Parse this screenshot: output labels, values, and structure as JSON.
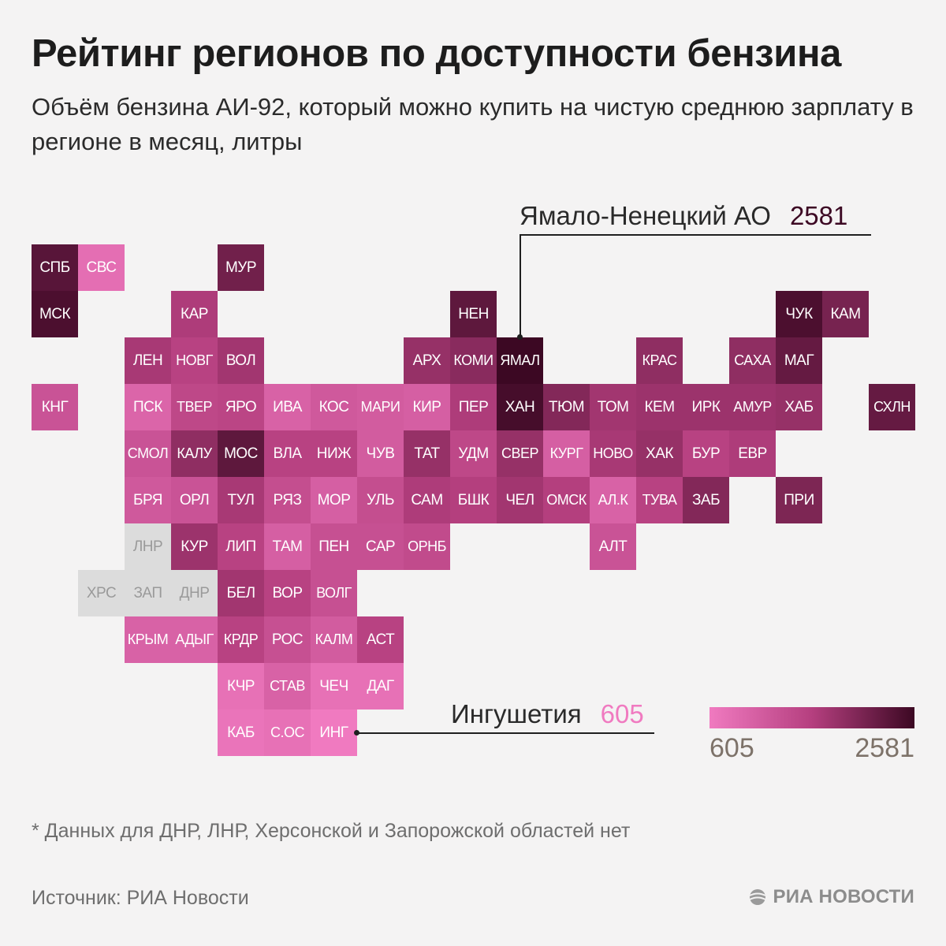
{
  "header": {
    "title": "Рейтинг регионов по доступности бензина",
    "subtitle": "Объём бензина АИ-92, который можно купить на чистую среднюю зарплату в регионе в месяц, литры"
  },
  "colors": {
    "scale_low": "#f07ac0",
    "scale_mid": "#b53f7f",
    "scale_high": "#3c0823",
    "no_data": "#dcdcdc",
    "background": "#f4f3f3"
  },
  "chart_data": {
    "type": "tile-map",
    "metric": "Объём бензина АИ-92 на чистую среднюю зарплату в месяц, литры",
    "scale_min": 605,
    "scale_max": 2581,
    "regions": [
      {
        "code": "СПБ",
        "col": 0,
        "row": 0,
        "value": 2350
      },
      {
        "code": "СВС",
        "col": 1,
        "row": 0,
        "value": 800
      },
      {
        "code": "МУР",
        "col": 4,
        "row": 0,
        "value": 2150
      },
      {
        "code": "МСК",
        "col": 0,
        "row": 1,
        "value": 2450
      },
      {
        "code": "КАР",
        "col": 3,
        "row": 1,
        "value": 1650
      },
      {
        "code": "НЕН",
        "col": 9,
        "row": 1,
        "value": 2300
      },
      {
        "code": "ЧУК",
        "col": 16,
        "row": 1,
        "value": 2450
      },
      {
        "code": "КАМ",
        "col": 17,
        "row": 1,
        "value": 2100
      },
      {
        "code": "ЛЕН",
        "col": 2,
        "row": 2,
        "value": 1700
      },
      {
        "code": "НОВГ",
        "col": 3,
        "row": 2,
        "value": 1550
      },
      {
        "code": "ВОЛ",
        "col": 4,
        "row": 2,
        "value": 1750
      },
      {
        "code": "АРХ",
        "col": 8,
        "row": 2,
        "value": 1850
      },
      {
        "code": "КОМИ",
        "col": 9,
        "row": 2,
        "value": 1950
      },
      {
        "code": "ЯМАЛ",
        "col": 10,
        "row": 2,
        "value": 2581
      },
      {
        "code": "КРАС",
        "col": 13,
        "row": 2,
        "value": 1900
      },
      {
        "code": "САХА",
        "col": 15,
        "row": 2,
        "value": 1900
      },
      {
        "code": "МАГ",
        "col": 16,
        "row": 2,
        "value": 2250
      },
      {
        "code": "КНГ",
        "col": 0,
        "row": 3,
        "value": 1250
      },
      {
        "code": "ПСК",
        "col": 2,
        "row": 3,
        "value": 950
      },
      {
        "code": "ТВЕР",
        "col": 3,
        "row": 3,
        "value": 1450
      },
      {
        "code": "ЯРО",
        "col": 4,
        "row": 3,
        "value": 1500
      },
      {
        "code": "ИВА",
        "col": 5,
        "row": 3,
        "value": 1000
      },
      {
        "code": "КОС",
        "col": 6,
        "row": 3,
        "value": 1150
      },
      {
        "code": "МАРИ",
        "col": 7,
        "row": 3,
        "value": 1100
      },
      {
        "code": "КИР",
        "col": 8,
        "row": 3,
        "value": 1050
      },
      {
        "code": "ПЕР",
        "col": 9,
        "row": 3,
        "value": 1650
      },
      {
        "code": "ХАН",
        "col": 10,
        "row": 3,
        "value": 2500
      },
      {
        "code": "ТЮМ",
        "col": 11,
        "row": 3,
        "value": 2000
      },
      {
        "code": "ТОМ",
        "col": 12,
        "row": 3,
        "value": 1750
      },
      {
        "code": "КЕМ",
        "col": 13,
        "row": 3,
        "value": 1800
      },
      {
        "code": "ИРК",
        "col": 14,
        "row": 3,
        "value": 1800
      },
      {
        "code": "АМУР",
        "col": 15,
        "row": 3,
        "value": 1800
      },
      {
        "code": "ХАБ",
        "col": 16,
        "row": 3,
        "value": 1850
      },
      {
        "code": "СХЛН",
        "col": 18,
        "row": 3,
        "value": 2250
      },
      {
        "code": "СМОЛ",
        "col": 2,
        "row": 4,
        "value": 1250
      },
      {
        "code": "КАЛУ",
        "col": 3,
        "row": 4,
        "value": 1900
      },
      {
        "code": "МОС",
        "col": 4,
        "row": 4,
        "value": 2300
      },
      {
        "code": "ВЛА",
        "col": 5,
        "row": 4,
        "value": 1550
      },
      {
        "code": "НИЖ",
        "col": 6,
        "row": 4,
        "value": 1550
      },
      {
        "code": "ЧУВ",
        "col": 7,
        "row": 4,
        "value": 1100
      },
      {
        "code": "ТАТ",
        "col": 8,
        "row": 4,
        "value": 1850
      },
      {
        "code": "УДМ",
        "col": 9,
        "row": 4,
        "value": 1450
      },
      {
        "code": "СВЕР",
        "col": 10,
        "row": 4,
        "value": 1850
      },
      {
        "code": "КУРГ",
        "col": 11,
        "row": 4,
        "value": 1050
      },
      {
        "code": "НОВО",
        "col": 12,
        "row": 4,
        "value": 1700
      },
      {
        "code": "ХАК",
        "col": 13,
        "row": 4,
        "value": 1850
      },
      {
        "code": "БУР",
        "col": 14,
        "row": 4,
        "value": 1550
      },
      {
        "code": "ЕВР",
        "col": 15,
        "row": 4,
        "value": 1650
      },
      {
        "code": "БРЯ",
        "col": 2,
        "row": 5,
        "value": 1150
      },
      {
        "code": "ОРЛ",
        "col": 3,
        "row": 5,
        "value": 1250
      },
      {
        "code": "ТУЛ",
        "col": 4,
        "row": 5,
        "value": 1700
      },
      {
        "code": "РЯЗ",
        "col": 5,
        "row": 5,
        "value": 1350
      },
      {
        "code": "МОР",
        "col": 6,
        "row": 5,
        "value": 1050
      },
      {
        "code": "УЛЬ",
        "col": 7,
        "row": 5,
        "value": 1350
      },
      {
        "code": "САМ",
        "col": 8,
        "row": 5,
        "value": 1650
      },
      {
        "code": "БШК",
        "col": 9,
        "row": 5,
        "value": 1600
      },
      {
        "code": "ЧЕЛ",
        "col": 10,
        "row": 5,
        "value": 1750
      },
      {
        "code": "ОМСК",
        "col": 11,
        "row": 5,
        "value": 1600
      },
      {
        "code": "АЛ.К",
        "col": 12,
        "row": 5,
        "value": 1000
      },
      {
        "code": "ТУВА",
        "col": 13,
        "row": 5,
        "value": 1550
      },
      {
        "code": "ЗАБ",
        "col": 14,
        "row": 5,
        "value": 2000
      },
      {
        "code": "ПРИ",
        "col": 16,
        "row": 5,
        "value": 2050
      },
      {
        "code": "ЛНР",
        "col": 2,
        "row": 6,
        "value": null
      },
      {
        "code": "КУР",
        "col": 3,
        "row": 6,
        "value": 1800
      },
      {
        "code": "ЛИП",
        "col": 4,
        "row": 6,
        "value": 1550
      },
      {
        "code": "ТАМ",
        "col": 5,
        "row": 6,
        "value": 1050
      },
      {
        "code": "ПЕН",
        "col": 6,
        "row": 6,
        "value": 1300
      },
      {
        "code": "САР",
        "col": 7,
        "row": 6,
        "value": 1300
      },
      {
        "code": "ОРНБ",
        "col": 8,
        "row": 6,
        "value": 1400
      },
      {
        "code": "АЛТ",
        "col": 12,
        "row": 6,
        "value": 1250
      },
      {
        "code": "ХРС",
        "col": 1,
        "row": 7,
        "value": null
      },
      {
        "code": "ЗАП",
        "col": 2,
        "row": 7,
        "value": null
      },
      {
        "code": "ДНР",
        "col": 3,
        "row": 7,
        "value": null
      },
      {
        "code": "БЕЛ",
        "col": 4,
        "row": 7,
        "value": 1750
      },
      {
        "code": "ВОР",
        "col": 5,
        "row": 7,
        "value": 1550
      },
      {
        "code": "ВОЛГ",
        "col": 6,
        "row": 7,
        "value": 1300
      },
      {
        "code": "КРЫМ",
        "col": 2,
        "row": 8,
        "value": 1000
      },
      {
        "code": "АДЫГ",
        "col": 3,
        "row": 8,
        "value": 1000
      },
      {
        "code": "КРДР",
        "col": 4,
        "row": 8,
        "value": 1550
      },
      {
        "code": "РОС",
        "col": 5,
        "row": 8,
        "value": 1300
      },
      {
        "code": "КАЛМ",
        "col": 6,
        "row": 8,
        "value": 1100
      },
      {
        "code": "АСТ",
        "col": 7,
        "row": 8,
        "value": 1550
      },
      {
        "code": "КЧР",
        "col": 4,
        "row": 9,
        "value": 750
      },
      {
        "code": "СТАВ",
        "col": 5,
        "row": 9,
        "value": 1000
      },
      {
        "code": "ЧЕЧ",
        "col": 6,
        "row": 9,
        "value": 750
      },
      {
        "code": "ДАГ",
        "col": 7,
        "row": 9,
        "value": 750
      },
      {
        "code": "КАБ",
        "col": 4,
        "row": 10,
        "value": 700
      },
      {
        "code": "С.ОС",
        "col": 5,
        "row": 10,
        "value": 750
      },
      {
        "code": "ИНГ",
        "col": 6,
        "row": 10,
        "value": 605
      }
    ],
    "annotations": [
      {
        "region": "Ямало-Ненецкий АО",
        "value": "2581"
      },
      {
        "region": "Ингушетия",
        "value": "605"
      }
    ],
    "legend": {
      "min_label": "605",
      "max_label": "2581"
    }
  },
  "callouts": {
    "top": {
      "name": "Ямало-Ненецкий АО",
      "value": "2581"
    },
    "bottom": {
      "name": "Ингушетия",
      "value": "605"
    }
  },
  "legend": {
    "min_label": "605",
    "max_label": "2581"
  },
  "footer": {
    "note": "* Данных для ДНР, ЛНР, Херсонской и Запорожской областей нет",
    "source": "Источник: РИА Новости",
    "logo": "РИА НОВОСТИ"
  }
}
